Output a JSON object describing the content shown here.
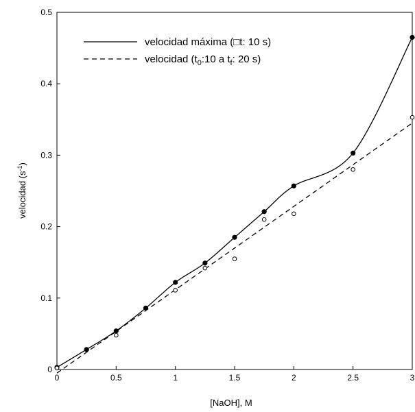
{
  "chart_data": {
    "type": "line",
    "title": "",
    "xlabel": "[NaOH], M",
    "ylabel": "velocidad (s",
    "ylabel_sup": "-1",
    "ylabel_tail": ")",
    "xlim": [
      0,
      3
    ],
    "ylim": [
      0,
      0.5
    ],
    "x_ticks": [
      0,
      0.5,
      1,
      1.5,
      2,
      2.5,
      3
    ],
    "x_tick_labels": [
      "0",
      "0.5",
      "1",
      "1.5",
      "2",
      "2.5",
      "3"
    ],
    "y_ticks": [
      0,
      0.1,
      0.2,
      0.3,
      0.4,
      0.5
    ],
    "y_tick_labels": [
      "0",
      "0.1",
      "0.2",
      "0.3",
      "0.4",
      "0.5"
    ],
    "grid": false,
    "legend_position": "top-left",
    "legend": [
      {
        "style": "solid",
        "parts": [
          {
            "t": "velocidad máxima ("
          },
          {
            "t": "□",
            "box": true
          },
          {
            "t": "t: 10 s)"
          }
        ]
      },
      {
        "style": "dashed",
        "parts": [
          {
            "t": "velocidad (t"
          },
          {
            "t": "0",
            "sub": true
          },
          {
            "t": ":10 a t"
          },
          {
            "t": "f",
            "sub": true
          },
          {
            "t": ": 20 s)"
          }
        ]
      }
    ],
    "series": [
      {
        "marker": "filled-circle",
        "line": "solid",
        "color": "#000000",
        "x": [
          0,
          0.25,
          0.5,
          0.75,
          1.0,
          1.25,
          1.5,
          1.75,
          2.0,
          2.5,
          3.0
        ],
        "y": [
          0.003,
          0.028,
          0.054,
          0.086,
          0.122,
          0.149,
          0.185,
          0.221,
          0.257,
          0.303,
          0.465
        ]
      },
      {
        "marker": "open-circle",
        "line": "dashed",
        "color": "#000000",
        "x": [
          0,
          0.5,
          1.0,
          1.25,
          1.5,
          1.75,
          2.0,
          2.5,
          3.0
        ],
        "y": [
          0.002,
          0.048,
          0.111,
          0.142,
          0.155,
          0.21,
          0.218,
          0.28,
          0.353
        ],
        "fit_line": {
          "x": [
            0,
            3
          ],
          "y": [
            -0.005,
            0.345
          ]
        }
      }
    ]
  }
}
